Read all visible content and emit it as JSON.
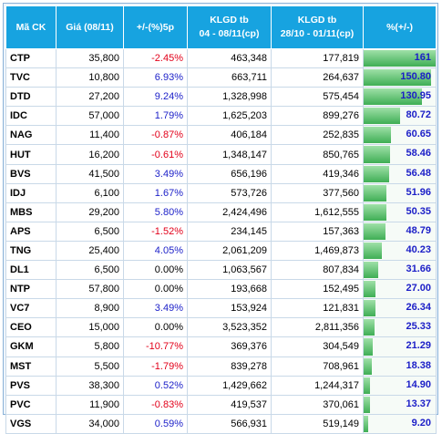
{
  "headers": {
    "code": "Mã CK",
    "price": "Giá (08/11)",
    "change": "+/-(%)5p",
    "vol1_line1": "KLGD tb",
    "vol1_line2": "04 - 08/11(cp)",
    "vol2_line1": "KLGD tb",
    "vol2_line2": "28/10 - 01/11(cp)",
    "pct": "%(+/-)"
  },
  "colors": {
    "header_bg": "#17a3e0",
    "negative": "#e2001a",
    "positive": "#1e22c9",
    "bar": "#3fae55"
  },
  "chart_data": {
    "type": "table",
    "bar_max": 161,
    "rows": [
      {
        "code": "CTP",
        "price": "35,800",
        "change": "-2.45%",
        "vol1": "463,348",
        "vol2": "177,819",
        "pct": "161",
        "value": 161
      },
      {
        "code": "TVC",
        "price": "10,800",
        "change": "6.93%",
        "vol1": "663,711",
        "vol2": "264,637",
        "pct": "150.80",
        "value": 150.8
      },
      {
        "code": "DTD",
        "price": "27,200",
        "change": "9.24%",
        "vol1": "1,328,998",
        "vol2": "575,454",
        "pct": "130.95",
        "value": 130.95
      },
      {
        "code": "IDC",
        "price": "57,000",
        "change": "1.79%",
        "vol1": "1,625,203",
        "vol2": "899,276",
        "pct": "80.72",
        "value": 80.72
      },
      {
        "code": "NAG",
        "price": "11,400",
        "change": "-0.87%",
        "vol1": "406,184",
        "vol2": "252,835",
        "pct": "60.65",
        "value": 60.65
      },
      {
        "code": "HUT",
        "price": "16,200",
        "change": "-0.61%",
        "vol1": "1,348,147",
        "vol2": "850,765",
        "pct": "58.46",
        "value": 58.46
      },
      {
        "code": "BVS",
        "price": "41,500",
        "change": "3.49%",
        "vol1": "656,196",
        "vol2": "419,346",
        "pct": "56.48",
        "value": 56.48
      },
      {
        "code": "IDJ",
        "price": "6,100",
        "change": "1.67%",
        "vol1": "573,726",
        "vol2": "377,560",
        "pct": "51.96",
        "value": 51.96
      },
      {
        "code": "MBS",
        "price": "29,200",
        "change": "5.80%",
        "vol1": "2,424,496",
        "vol2": "1,612,555",
        "pct": "50.35",
        "value": 50.35
      },
      {
        "code": "APS",
        "price": "6,500",
        "change": "-1.52%",
        "vol1": "234,145",
        "vol2": "157,363",
        "pct": "48.79",
        "value": 48.79
      },
      {
        "code": "TNG",
        "price": "25,400",
        "change": "4.05%",
        "vol1": "2,061,209",
        "vol2": "1,469,873",
        "pct": "40.23",
        "value": 40.23
      },
      {
        "code": "DL1",
        "price": "6,500",
        "change": "0.00%",
        "vol1": "1,063,567",
        "vol2": "807,834",
        "pct": "31.66",
        "value": 31.66
      },
      {
        "code": "NTP",
        "price": "57,800",
        "change": "0.00%",
        "vol1": "193,668",
        "vol2": "152,495",
        "pct": "27.00",
        "value": 27.0
      },
      {
        "code": "VC7",
        "price": "8,900",
        "change": "3.49%",
        "vol1": "153,924",
        "vol2": "121,831",
        "pct": "26.34",
        "value": 26.34
      },
      {
        "code": "CEO",
        "price": "15,000",
        "change": "0.00%",
        "vol1": "3,523,352",
        "vol2": "2,811,356",
        "pct": "25.33",
        "value": 25.33
      },
      {
        "code": "GKM",
        "price": "5,800",
        "change": "-10.77%",
        "vol1": "369,376",
        "vol2": "304,549",
        "pct": "21.29",
        "value": 21.29
      },
      {
        "code": "MST",
        "price": "5,500",
        "change": "-1.79%",
        "vol1": "839,278",
        "vol2": "708,961",
        "pct": "18.38",
        "value": 18.38
      },
      {
        "code": "PVS",
        "price": "38,300",
        "change": "0.52%",
        "vol1": "1,429,662",
        "vol2": "1,244,317",
        "pct": "14.90",
        "value": 14.9
      },
      {
        "code": "PVC",
        "price": "11,900",
        "change": "-0.83%",
        "vol1": "419,537",
        "vol2": "370,061",
        "pct": "13.37",
        "value": 13.37
      },
      {
        "code": "VGS",
        "price": "34,000",
        "change": "0.59%",
        "vol1": "566,931",
        "vol2": "519,149",
        "pct": "9.20",
        "value": 9.2
      }
    ]
  }
}
